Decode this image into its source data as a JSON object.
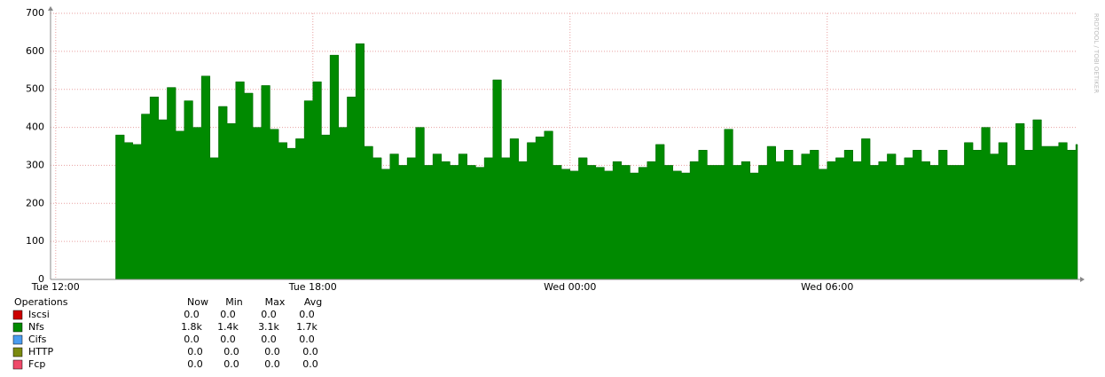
{
  "chart_data": {
    "type": "area",
    "x": [
      13.4,
      13.6,
      13.8,
      14,
      14.2,
      14.4,
      14.6,
      14.8,
      15,
      15.2,
      15.4,
      15.6,
      15.8,
      16,
      16.2,
      16.4,
      16.6,
      16.8,
      17,
      17.2,
      17.4,
      17.6,
      17.8,
      18,
      18.2,
      18.4,
      18.6,
      18.8,
      19,
      19.2,
      19.4,
      19.6,
      19.8,
      20,
      20.2,
      20.4,
      20.6,
      20.8,
      21,
      21.2,
      21.4,
      21.6,
      21.8,
      22,
      22.2,
      22.4,
      22.6,
      22.8,
      23,
      23.2,
      23.4,
      23.6,
      23.8,
      24,
      24.2,
      24.4,
      24.6,
      24.8,
      25,
      25.2,
      25.4,
      25.6,
      25.8,
      26,
      26.2,
      26.4,
      26.6,
      26.8,
      27,
      27.2,
      27.4,
      27.6,
      27.8,
      28,
      28.2,
      28.4,
      28.6,
      28.8,
      29,
      29.2,
      29.4,
      29.6,
      29.8,
      30,
      30.2,
      30.4,
      30.6,
      30.8,
      31,
      31.2,
      31.4,
      31.6,
      31.8,
      32,
      32.2,
      32.4,
      32.6,
      32.8,
      33,
      33.2,
      33.4,
      33.6,
      33.8,
      34,
      34.2,
      34.4,
      34.6,
      34.8,
      35,
      35.2,
      35.4,
      35.6,
      35.8
    ],
    "values": [
      380,
      360,
      355,
      435,
      480,
      420,
      505,
      390,
      470,
      400,
      535,
      320,
      455,
      410,
      520,
      490,
      400,
      510,
      395,
      360,
      345,
      370,
      470,
      520,
      380,
      590,
      400,
      480,
      620,
      350,
      320,
      290,
      330,
      300,
      320,
      400,
      300,
      330,
      310,
      300,
      330,
      300,
      295,
      320,
      525,
      320,
      370,
      310,
      360,
      375,
      390,
      300,
      290,
      285,
      320,
      300,
      295,
      285,
      310,
      300,
      280,
      295,
      310,
      355,
      300,
      285,
      280,
      310,
      340,
      300,
      300,
      395,
      300,
      310,
      280,
      300,
      350,
      310,
      340,
      300,
      330,
      340,
      290,
      310,
      320,
      340,
      310,
      370,
      300,
      310,
      330,
      300,
      320,
      340,
      310,
      300,
      340,
      300,
      300,
      360,
      340,
      400,
      330,
      360,
      300,
      410,
      340,
      420,
      350,
      350,
      360,
      340,
      355
    ],
    "color": "#008a00",
    "xlim": [
      11.88,
      35.84
    ],
    "xticks": [
      {
        "value": 12,
        "label": "Tue 12:00"
      },
      {
        "value": 18,
        "label": "Tue 18:00"
      },
      {
        "value": 24,
        "label": "Wed 00:00"
      },
      {
        "value": 30,
        "label": "Wed 06:00"
      }
    ],
    "ylim": [
      0,
      700
    ],
    "yticks": [
      0,
      100,
      200,
      300,
      400,
      500,
      600,
      700
    ],
    "grid": true,
    "watermark": "RRDTOOL / TOBI OETIKER"
  },
  "legend": {
    "header": [
      "Operations",
      "Now",
      "Min",
      "Max",
      "Avg"
    ],
    "rows": [
      {
        "name": "Iscsi",
        "color": "#cc0000",
        "stats": [
          "0.0",
          "0.0",
          "0.0",
          "0.0"
        ]
      },
      {
        "name": "Nfs",
        "color": "#008a00",
        "stats": [
          "1.8k",
          "1.4k",
          "3.1k",
          "1.7k"
        ]
      },
      {
        "name": "Cifs",
        "color": "#4a9cef",
        "stats": [
          "0.0",
          "0.0",
          "0.0",
          "0.0"
        ]
      },
      {
        "name": "HTTP",
        "color": "#7a8a10",
        "stats": [
          "0.0",
          "0.0",
          "0.0",
          "0.0"
        ]
      },
      {
        "name": "Fcp",
        "color": "#ef4a6a",
        "stats": [
          "0.0",
          "0.0",
          "0.0",
          "0.0"
        ]
      }
    ]
  }
}
